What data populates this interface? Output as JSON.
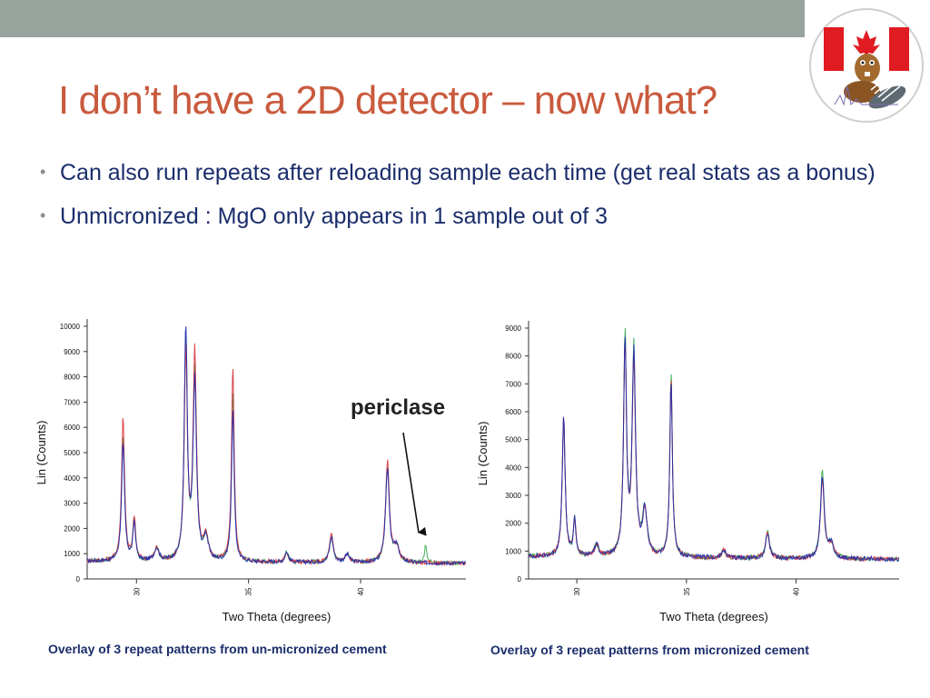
{
  "slide": {
    "title": "I don’t have a 2D detector – now what?",
    "bullets": [
      "Can also run repeats after reloading sample each time (get real stats as a bonus)",
      "Unmicronized : MgO only appears in 1 sample out of 3"
    ],
    "annotation": "periclase"
  },
  "colors": {
    "title": "#c95a3d",
    "text": "#1a2d6b",
    "topbar": "#97a39c",
    "series": [
      "#1f2bb0",
      "#d9303a",
      "#33a84a"
    ]
  },
  "chart_data": [
    {
      "type": "line",
      "caption": "Overlay of 3 repeat patterns from un-micronized cement",
      "xlabel": "Two Theta (degrees)",
      "ylabel": "Lin (Counts)",
      "xlim": [
        27.8,
        44.7
      ],
      "ylim": [
        0,
        10000
      ],
      "yticks": [
        "0",
        "1000",
        "2000",
        "3000",
        "4000",
        "5000",
        "6000",
        "7000",
        "8000",
        "9000",
        "10000"
      ],
      "xticks": [
        "30",
        "35",
        "40"
      ],
      "baseline": 700,
      "peaks": [
        {
          "x": 29.4,
          "h": [
            4600,
            5700,
            5000
          ],
          "w": 0.08
        },
        {
          "x": 29.9,
          "h": [
            1500,
            1700,
            1600
          ],
          "w": 0.07
        },
        {
          "x": 30.9,
          "h": [
            500,
            500,
            500
          ],
          "w": 0.12
        },
        {
          "x": 32.2,
          "h": [
            9300,
            8300,
            8700
          ],
          "w": 0.08
        },
        {
          "x": 32.6,
          "h": [
            7000,
            8200,
            7400
          ],
          "w": 0.09
        },
        {
          "x": 33.1,
          "h": [
            900,
            900,
            900
          ],
          "w": 0.12
        },
        {
          "x": 34.3,
          "h": [
            6000,
            7800,
            6800
          ],
          "w": 0.07
        },
        {
          "x": 36.7,
          "h": [
            400,
            400,
            400
          ],
          "w": 0.09
        },
        {
          "x": 38.7,
          "h": [
            1000,
            1100,
            1000
          ],
          "w": 0.1
        },
        {
          "x": 39.4,
          "h": [
            300,
            300,
            300
          ],
          "w": 0.12
        },
        {
          "x": 41.2,
          "h": [
            3700,
            4000,
            3800
          ],
          "w": 0.1
        },
        {
          "x": 41.6,
          "h": [
            600,
            600,
            600
          ],
          "w": 0.14
        },
        {
          "x": 42.9,
          "h": [
            0,
            0,
            700
          ],
          "w": 0.06
        }
      ]
    },
    {
      "type": "line",
      "caption": "Overlay of 3 repeat patterns from micronized cement",
      "xlabel": "Two Theta (degrees)",
      "ylabel": "Lin (Counts)",
      "xlim": [
        27.8,
        44.7
      ],
      "ylim": [
        0,
        9000
      ],
      "yticks": [
        "0",
        "1000",
        "2000",
        "3000",
        "4000",
        "5000",
        "6000",
        "7000",
        "8000",
        "9000"
      ],
      "xticks": [
        "30",
        "35",
        "40"
      ],
      "baseline": 800,
      "peaks": [
        {
          "x": 29.4,
          "h": [
            5000,
            5000,
            4900
          ],
          "w": 0.08
        },
        {
          "x": 29.9,
          "h": [
            1300,
            1300,
            1300
          ],
          "w": 0.07
        },
        {
          "x": 30.9,
          "h": [
            400,
            400,
            400
          ],
          "w": 0.12
        },
        {
          "x": 32.2,
          "h": [
            7600,
            7500,
            7900
          ],
          "w": 0.08
        },
        {
          "x": 32.6,
          "h": [
            7300,
            7000,
            7400
          ],
          "w": 0.09
        },
        {
          "x": 33.1,
          "h": [
            1600,
            1600,
            1700
          ],
          "w": 0.12
        },
        {
          "x": 34.3,
          "h": [
            6300,
            6400,
            6600
          ],
          "w": 0.07
        },
        {
          "x": 36.7,
          "h": [
            300,
            300,
            300
          ],
          "w": 0.09
        },
        {
          "x": 38.7,
          "h": [
            900,
            900,
            1000
          ],
          "w": 0.1
        },
        {
          "x": 41.2,
          "h": [
            2900,
            2800,
            3100
          ],
          "w": 0.1
        },
        {
          "x": 41.6,
          "h": [
            500,
            500,
            500
          ],
          "w": 0.14
        }
      ]
    }
  ]
}
